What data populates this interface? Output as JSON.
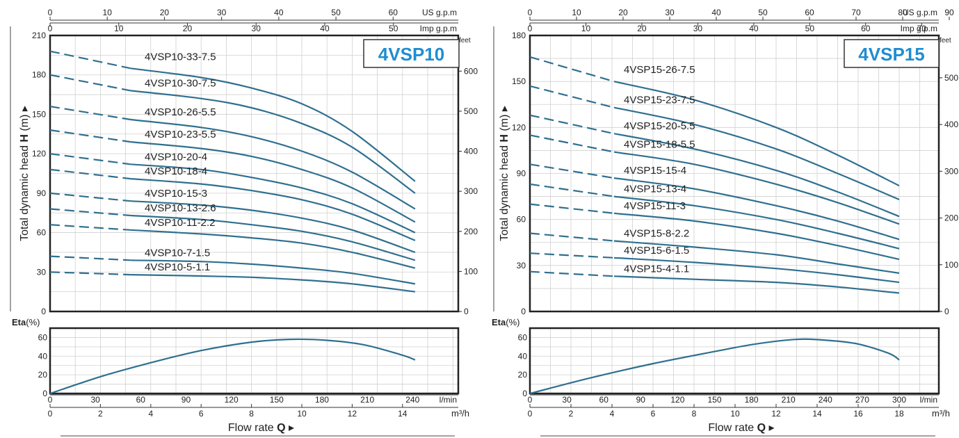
{
  "colors": {
    "curve": "#2f6f8f",
    "badge_text": "#1f8dd0",
    "grid": "#d0d0d0",
    "frame": "#222222"
  },
  "chart_data": [
    {
      "type": "line",
      "title": "4VSP10",
      "ylabel": "Total dynamic head",
      "ylabel_symbol": "H",
      "ylabel_unit": "(m)",
      "y_right_unit": "feet",
      "xlabel": "Flow rate",
      "xlabel_symbol": "Q",
      "eta_label": "Eta",
      "eta_unit": "(%)",
      "ylim": [
        0,
        210
      ],
      "y_ticks": [
        0,
        30,
        60,
        90,
        120,
        150,
        180,
        210
      ],
      "feet_ticks": [
        0,
        100,
        200,
        300,
        400,
        500,
        600
      ],
      "eta_ylim": [
        0,
        70
      ],
      "eta_ticks": [
        0,
        20,
        40,
        60
      ],
      "xlim_m3h": [
        0,
        16
      ],
      "x_m3h_ticks": [
        0,
        2,
        4,
        6,
        8,
        10,
        12,
        14
      ],
      "x_m3h_unit": "m³/h",
      "x_lmin_ticks": [
        0,
        30,
        60,
        90,
        120,
        150,
        180,
        210,
        240
      ],
      "x_lmin_unit": "l/min",
      "x_usgpm_ticks": [
        0,
        10,
        20,
        30,
        40,
        50,
        60
      ],
      "x_usgpm_unit": "US g.p.m",
      "x_impgpm_ticks": [
        0,
        10,
        20,
        30,
        40,
        50
      ],
      "x_impgpm_unit": "Imp g.p.m",
      "dash_end_m3h": 3.2,
      "series": [
        {
          "name": "4VSP10-33-7.5",
          "x": [
            0,
            3.2,
            6,
            8,
            10,
            12,
            14.5
          ],
          "y": [
            198,
            185,
            178,
            170,
            158,
            137,
            99
          ]
        },
        {
          "name": "4VSP10-30-7.5",
          "x": [
            0,
            3.2,
            6,
            8,
            10,
            12,
            14.5
          ],
          "y": [
            180,
            168,
            162,
            155,
            143,
            125,
            90
          ]
        },
        {
          "name": "4VSP10-26-5.5",
          "x": [
            0,
            3.2,
            6,
            8,
            10,
            12,
            14.5
          ],
          "y": [
            156,
            146,
            140,
            133,
            122,
            106,
            78
          ]
        },
        {
          "name": "4VSP10-23-5.5",
          "x": [
            0,
            3.2,
            6,
            8,
            10,
            12,
            14.5
          ],
          "y": [
            138,
            129,
            124,
            118,
            108,
            94,
            68
          ]
        },
        {
          "name": "4VSP10-20-4",
          "x": [
            0,
            3.2,
            6,
            8,
            10,
            12,
            14.5
          ],
          "y": [
            120,
            112,
            108,
            102,
            94,
            82,
            60
          ]
        },
        {
          "name": "4VSP10-18-4",
          "x": [
            0,
            3.2,
            6,
            8,
            10,
            12,
            14.5
          ],
          "y": [
            108,
            101,
            97,
            92,
            85,
            74,
            54
          ]
        },
        {
          "name": "4VSP10-15-3",
          "x": [
            0,
            3.2,
            6,
            8,
            10,
            12,
            14.5
          ],
          "y": [
            90,
            84,
            81,
            77,
            71,
            62,
            45
          ]
        },
        {
          "name": "4VSP10-13-2.6",
          "x": [
            0,
            3.2,
            6,
            8,
            10,
            12,
            14.5
          ],
          "y": [
            78,
            73,
            70,
            66,
            61,
            53,
            39
          ]
        },
        {
          "name": "4VSP10-11-2.2",
          "x": [
            0,
            3.2,
            6,
            8,
            10,
            12,
            14.5
          ],
          "y": [
            66,
            62,
            59,
            56,
            52,
            45,
            33
          ]
        },
        {
          "name": "4VSP10-7-1.5",
          "x": [
            0,
            3.2,
            6,
            8,
            10,
            12,
            14.5
          ],
          "y": [
            42,
            39,
            38,
            36,
            33,
            29,
            21
          ]
        },
        {
          "name": "4VSP10-5-1.1",
          "x": [
            0,
            3.2,
            6,
            8,
            10,
            12,
            14.5
          ],
          "y": [
            30,
            28,
            27,
            26,
            24,
            21,
            15
          ]
        }
      ],
      "eta": {
        "x": [
          0,
          2,
          4,
          6,
          8,
          9.5,
          11,
          12.5,
          14,
          14.5
        ],
        "y": [
          0,
          18,
          33,
          46,
          55,
          58,
          57,
          52,
          41,
          36
        ]
      }
    },
    {
      "type": "line",
      "title": "4VSP15",
      "ylabel": "Total dynamic head",
      "ylabel_symbol": "H",
      "ylabel_unit": "(m)",
      "y_right_unit": "feet",
      "xlabel": "Flow rate",
      "xlabel_symbol": "Q",
      "eta_label": "Eta",
      "eta_unit": "(%)",
      "ylim": [
        0,
        180
      ],
      "y_ticks": [
        0,
        30,
        60,
        90,
        120,
        150,
        180
      ],
      "feet_ticks": [
        0,
        100,
        200,
        300,
        400,
        500
      ],
      "eta_ylim": [
        0,
        70
      ],
      "eta_ticks": [
        0,
        20,
        40,
        60
      ],
      "xlim_m3h": [
        0,
        19
      ],
      "x_m3h_ticks": [
        0,
        2,
        4,
        6,
        8,
        10,
        12,
        14,
        16,
        18
      ],
      "x_m3h_unit": "m³/h",
      "x_lmin_ticks": [
        0,
        30,
        60,
        90,
        120,
        150,
        180,
        210,
        240,
        270,
        300
      ],
      "x_lmin_unit": "l/min",
      "x_usgpm_ticks": [
        0,
        10,
        20,
        30,
        40,
        50,
        60,
        70,
        80,
        90
      ],
      "x_usgpm_unit": "US g.p.m",
      "x_impgpm_ticks": [
        0,
        10,
        20,
        30,
        40,
        50,
        60,
        70
      ],
      "x_impgpm_unit": "Imp g.p.m",
      "dash_end_m3h": 4.1,
      "series": [
        {
          "name": "4VSP15-26-7.5",
          "x": [
            0,
            4.1,
            8,
            12,
            15,
            18
          ],
          "y": [
            166,
            150,
            138,
            120,
            102,
            82
          ]
        },
        {
          "name": "4VSP15-23-7.5",
          "x": [
            0,
            4.1,
            8,
            12,
            15,
            18
          ],
          "y": [
            147,
            133,
            122,
            106,
            90,
            73
          ]
        },
        {
          "name": "4VSP15-20-5.5",
          "x": [
            0,
            4.1,
            8,
            12,
            15,
            18
          ],
          "y": [
            128,
            116,
            106,
            92,
            78,
            62
          ]
        },
        {
          "name": "4VSP15-18-5.5",
          "x": [
            0,
            4.1,
            8,
            12,
            15,
            18
          ],
          "y": [
            115,
            104,
            96,
            83,
            71,
            57
          ]
        },
        {
          "name": "4VSP15-15-4",
          "x": [
            0,
            4.1,
            8,
            12,
            15,
            18
          ],
          "y": [
            96,
            87,
            80,
            69,
            59,
            47
          ]
        },
        {
          "name": "4VSP15-13-4",
          "x": [
            0,
            4.1,
            8,
            12,
            15,
            18
          ],
          "y": [
            83,
            75,
            69,
            60,
            51,
            41
          ]
        },
        {
          "name": "4VSP15-11-3",
          "x": [
            0,
            4.1,
            8,
            12,
            15,
            18
          ],
          "y": [
            70,
            64,
            59,
            51,
            43,
            34
          ]
        },
        {
          "name": "4VSP15-8-2.2",
          "x": [
            0,
            4.1,
            8,
            12,
            15,
            18
          ],
          "y": [
            51,
            46,
            42,
            37,
            31,
            25
          ]
        },
        {
          "name": "4VSP15-6-1.5",
          "x": [
            0,
            4.1,
            8,
            12,
            15,
            18
          ],
          "y": [
            38,
            35,
            32,
            28,
            24,
            19
          ]
        },
        {
          "name": "4VSP15-4-1.1",
          "x": [
            0,
            4.1,
            8,
            12,
            15,
            18
          ],
          "y": [
            26,
            23,
            21,
            19,
            16,
            12
          ]
        }
      ],
      "eta": {
        "x": [
          0,
          3,
          6,
          9,
          11,
          13,
          14.5,
          16,
          17.5,
          18
        ],
        "y": [
          0,
          17,
          32,
          45,
          53,
          58,
          57,
          53,
          43,
          36
        ]
      }
    }
  ]
}
